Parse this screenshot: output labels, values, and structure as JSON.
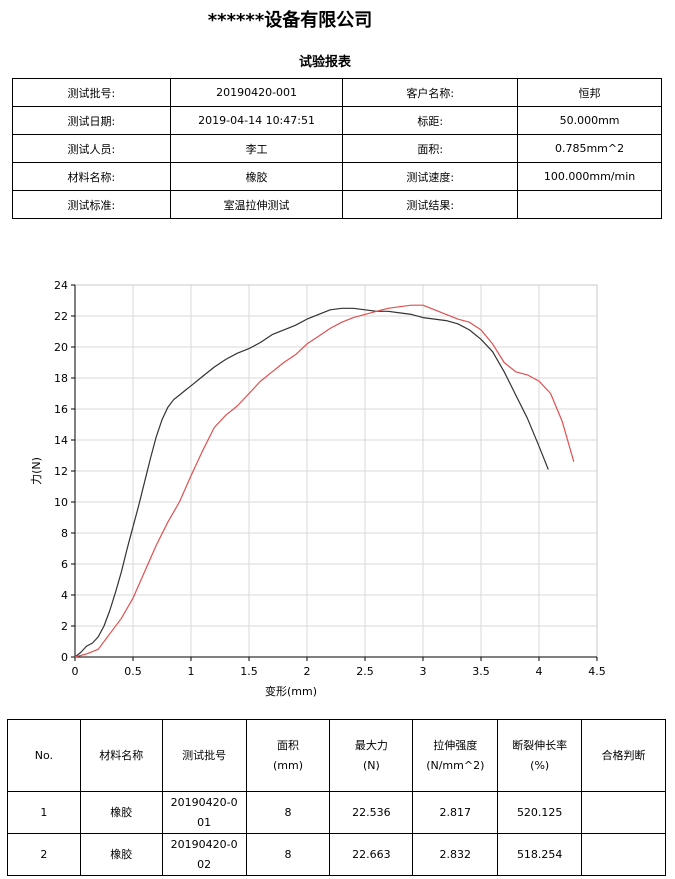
{
  "header": {
    "company": "******设备有限公司",
    "title": "试验报表"
  },
  "info": [
    [
      "测试批号:",
      "20190420-001",
      "客户名称:",
      "恒邦"
    ],
    [
      "测试日期:",
      "2019-04-14 10:47:51",
      "标距:",
      "50.000mm"
    ],
    [
      "测试人员:",
      "李工",
      "面积:",
      "0.785mm^2"
    ],
    [
      "材料名称:",
      "橡胶",
      "测试速度:",
      "100.000mm/min"
    ],
    [
      "测试标准:",
      "室温拉伸测试",
      "测试结果:",
      ""
    ]
  ],
  "chart_data": {
    "type": "line",
    "xlabel": "变形(mm)",
    "ylabel": "力(N)",
    "xlim": [
      0,
      4.5
    ],
    "ylim": [
      0,
      24
    ],
    "xticks": [
      "0",
      "0.5",
      "1",
      "1.5",
      "2",
      "2.5",
      "3",
      "3.5",
      "4",
      "4.5"
    ],
    "yticks": [
      "0",
      "2",
      "4",
      "6",
      "8",
      "10",
      "12",
      "14",
      "16",
      "18",
      "20",
      "22",
      "24"
    ],
    "grid": true,
    "series": [
      {
        "color": "#333333",
        "x": [
          0,
          0.05,
          0.1,
          0.15,
          0.2,
          0.25,
          0.3,
          0.35,
          0.4,
          0.45,
          0.5,
          0.55,
          0.6,
          0.65,
          0.7,
          0.75,
          0.8,
          0.85,
          0.9,
          0.95,
          1.0,
          1.1,
          1.2,
          1.3,
          1.4,
          1.5,
          1.6,
          1.7,
          1.8,
          1.9,
          2.0,
          2.1,
          2.2,
          2.3,
          2.4,
          2.5,
          2.6,
          2.7,
          2.8,
          2.9,
          3.0,
          3.1,
          3.2,
          3.3,
          3.4,
          3.5,
          3.6,
          3.7,
          3.8,
          3.9,
          4.0,
          4.08
        ],
        "y": [
          0,
          0.3,
          0.7,
          0.9,
          1.3,
          2.0,
          3.0,
          4.2,
          5.5,
          7.0,
          8.4,
          9.8,
          11.3,
          12.8,
          14.2,
          15.3,
          16.1,
          16.6,
          16.9,
          17.2,
          17.5,
          18.1,
          18.7,
          19.2,
          19.6,
          19.9,
          20.3,
          20.8,
          21.1,
          21.4,
          21.8,
          22.1,
          22.4,
          22.5,
          22.5,
          22.4,
          22.3,
          22.3,
          22.2,
          22.1,
          21.9,
          21.8,
          21.7,
          21.5,
          21.1,
          20.5,
          19.7,
          18.4,
          16.9,
          15.4,
          13.6,
          12.1
        ]
      },
      {
        "color": "#e05050",
        "x": [
          0,
          0.1,
          0.2,
          0.3,
          0.4,
          0.5,
          0.6,
          0.7,
          0.8,
          0.9,
          1.0,
          1.1,
          1.2,
          1.3,
          1.4,
          1.5,
          1.6,
          1.7,
          1.8,
          1.9,
          2.0,
          2.1,
          2.2,
          2.3,
          2.4,
          2.5,
          2.6,
          2.7,
          2.8,
          2.9,
          3.0,
          3.1,
          3.2,
          3.3,
          3.4,
          3.5,
          3.6,
          3.7,
          3.8,
          3.9,
          4.0,
          4.1,
          4.2,
          4.3
        ],
        "y": [
          0,
          0.2,
          0.5,
          1.5,
          2.5,
          3.8,
          5.5,
          7.2,
          8.7,
          10.0,
          11.7,
          13.3,
          14.8,
          15.6,
          16.2,
          17.0,
          17.8,
          18.4,
          19.0,
          19.5,
          20.2,
          20.7,
          21.2,
          21.6,
          21.9,
          22.1,
          22.3,
          22.5,
          22.6,
          22.7,
          22.7,
          22.4,
          22.1,
          21.8,
          21.6,
          21.1,
          20.2,
          19.0,
          18.4,
          18.2,
          17.8,
          17.0,
          15.2,
          12.6
        ]
      }
    ]
  },
  "results": {
    "headers": [
      "No.",
      "材料名称",
      "测试批号",
      "面积\n(mm)",
      "最大力\n(N)",
      "拉伸强度\n(N/mm^2)",
      "断裂伸长率\n(%)",
      "合格判断"
    ],
    "rows": [
      [
        "1",
        "橡胶",
        "20190420-0\n01",
        "8",
        "22.536",
        "2.817",
        "520.125",
        ""
      ],
      [
        "2",
        "橡胶",
        "20190420-0\n02",
        "8",
        "22.663",
        "2.832",
        "518.254",
        ""
      ]
    ]
  }
}
